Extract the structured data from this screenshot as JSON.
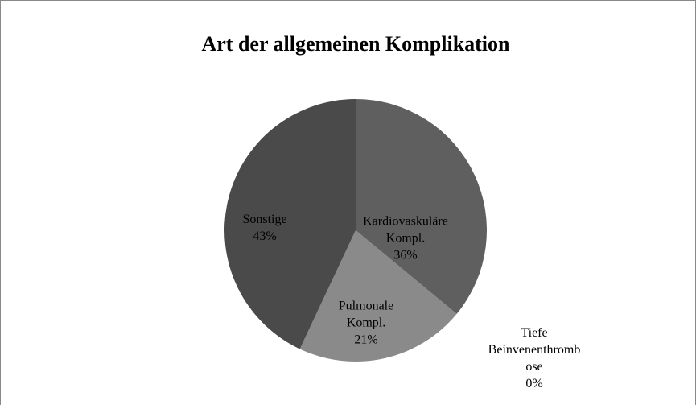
{
  "chart_data": {
    "type": "pie",
    "title": "Art der allgemeinen Komplikation",
    "categories": [
      "Kardiovaskuläre Kompl.",
      "Pulmonale Kompl.",
      "Tiefe Beinvenenthrombose",
      "Sonstige"
    ],
    "values": [
      36,
      21,
      0,
      43
    ],
    "value_labels": [
      "36%",
      "21%",
      "0%",
      "43%"
    ],
    "colors": [
      "#5f5f5f",
      "#8a8a8a",
      "#b0b0b0",
      "#4a4a4a"
    ]
  }
}
